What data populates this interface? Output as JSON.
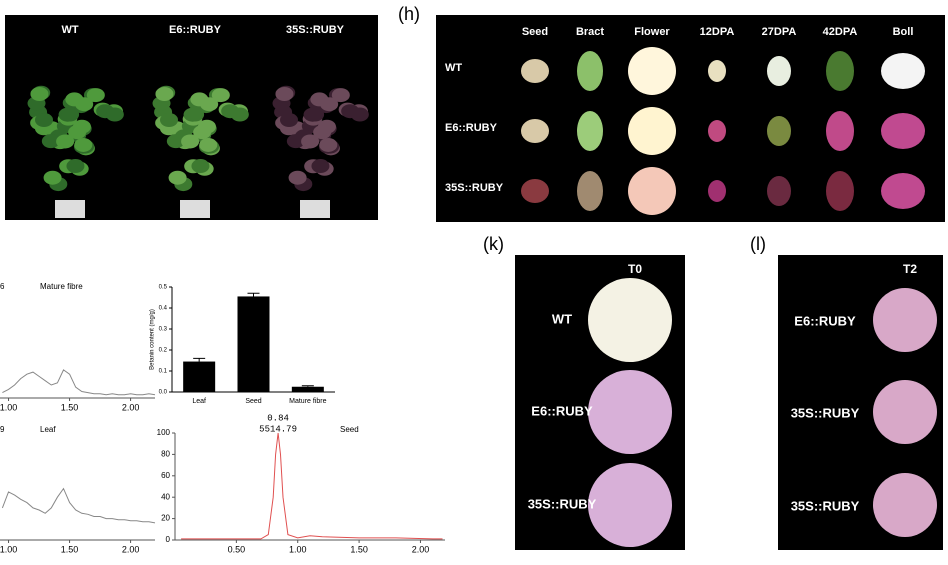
{
  "panels": {
    "a": {
      "labels": [
        "WT",
        "E6::RUBY",
        "35S::RUBY"
      ]
    },
    "h": {
      "label": "(h)",
      "columns": [
        "Seed",
        "Bract",
        "Flower",
        "12DPA",
        "27DPA",
        "42DPA",
        "Boll"
      ],
      "rows": [
        "WT",
        "E6::RUBY",
        "35S::RUBY"
      ]
    },
    "k": {
      "label": "(k)",
      "title": "T0",
      "rows": [
        "WT",
        "E6::RUBY",
        "35S::RUBY"
      ]
    },
    "l": {
      "label": "(l)",
      "title": "T2",
      "rows": [
        "E6::RUBY",
        "35S::RUBY",
        "35S::RUBY"
      ]
    }
  },
  "chart_data": [
    {
      "type": "bar",
      "ylabel": "Betanin content (mg/g)",
      "categories": [
        "Leaf",
        "Seed",
        "Mature fibre"
      ],
      "values": [
        0.145,
        0.455,
        0.025
      ],
      "errors": [
        0.015,
        0.015,
        0.005
      ],
      "color": "#000000",
      "ylim": [
        0,
        0.5
      ],
      "yticks": [
        {
          "value": 0,
          "label": "0.0"
        },
        0.1,
        0.2,
        0.3,
        0.4,
        0.5
      ]
    },
    {
      "type": "line",
      "label": "6",
      "title": "Mature fibre",
      "color": "#888888",
      "x": [
        0.95,
        1.0,
        1.05,
        1.1,
        1.15,
        1.2,
        1.25,
        1.3,
        1.35,
        1.4,
        1.45,
        1.5,
        1.55,
        1.6,
        1.65,
        1.7,
        1.75,
        1.8,
        1.85,
        1.9,
        1.95,
        2.0,
        2.05,
        2.1,
        2.15,
        2.2
      ],
      "values": [
        5,
        8,
        12,
        18,
        22,
        24,
        20,
        16,
        12,
        14,
        26,
        22,
        10,
        6,
        5,
        4,
        4,
        3,
        4,
        3,
        3,
        4,
        3,
        3,
        4,
        3
      ],
      "xlim": [
        0.93,
        2.2
      ],
      "ylim": [
        0,
        100
      ],
      "xticks": [
        {
          "value": 1,
          "label": "1.00"
        },
        {
          "value": 1.5,
          "label": "1.50"
        },
        {
          "value": 2,
          "label": "2.00"
        }
      ]
    },
    {
      "type": "line",
      "label": "9",
      "title": "Leaf",
      "color": "#888888",
      "x": [
        0.95,
        1.0,
        1.05,
        1.1,
        1.15,
        1.2,
        1.25,
        1.3,
        1.35,
        1.4,
        1.45,
        1.5,
        1.55,
        1.6,
        1.65,
        1.7,
        1.75,
        1.8,
        1.85,
        1.9,
        1.95,
        2.0,
        2.05,
        2.1,
        2.15,
        2.2
      ],
      "values": [
        30,
        45,
        42,
        38,
        35,
        30,
        28,
        25,
        30,
        40,
        48,
        35,
        28,
        25,
        24,
        22,
        22,
        20,
        20,
        19,
        19,
        18,
        18,
        17,
        17,
        16
      ],
      "xlim": [
        0.93,
        2.2
      ],
      "ylim": [
        0,
        100
      ],
      "xticks": [
        {
          "value": 1,
          "label": "1.00"
        },
        {
          "value": 1.5,
          "label": "1.50"
        },
        {
          "value": 2,
          "label": "2.00"
        }
      ]
    },
    {
      "type": "line",
      "title": "Seed",
      "color": "#e05050",
      "peak": {
        "x": 0.84,
        "area": 5514.79
      },
      "x": [
        0.05,
        0.5,
        0.7,
        0.76,
        0.8,
        0.82,
        0.84,
        0.86,
        0.88,
        0.92,
        1.0,
        1.1,
        1.2,
        1.5,
        1.8,
        2.1,
        2.18
      ],
      "values": [
        1,
        1,
        1,
        5,
        40,
        80,
        100,
        80,
        40,
        5,
        2,
        4,
        3,
        2,
        2,
        1,
        1
      ],
      "xlim": [
        0,
        2.2
      ],
      "ylim": [
        0,
        100
      ],
      "yticks": [
        0,
        20,
        40,
        60,
        80,
        100
      ],
      "xticks": [
        {
          "value": 0.5,
          "label": "0.50"
        },
        {
          "value": 1,
          "label": "1.00"
        },
        {
          "value": 1.5,
          "label": "1.50"
        },
        {
          "value": 2,
          "label": "2.00"
        }
      ]
    }
  ]
}
